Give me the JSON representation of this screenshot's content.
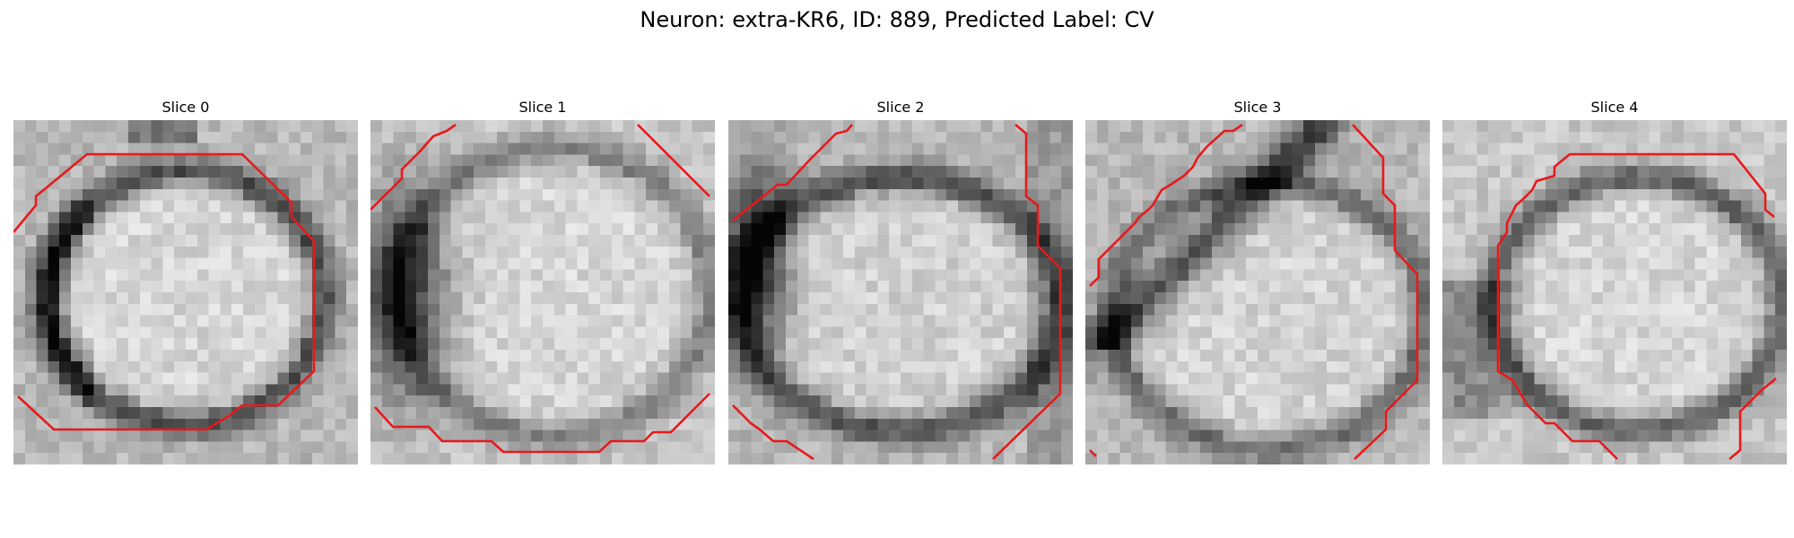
{
  "figure": {
    "title": "Neuron: extra-KR6, ID: 889, Predicted Label: CV"
  },
  "colors": {
    "contour": "#e8191b",
    "background": "#ffffff"
  },
  "colormap": "gray",
  "grid_size": 30,
  "slices": [
    {
      "title": "Slice 0"
    },
    {
      "title": "Slice 1"
    },
    {
      "title": "Slice 2"
    },
    {
      "title": "Slice 3"
    },
    {
      "title": "Slice 4"
    }
  ]
}
